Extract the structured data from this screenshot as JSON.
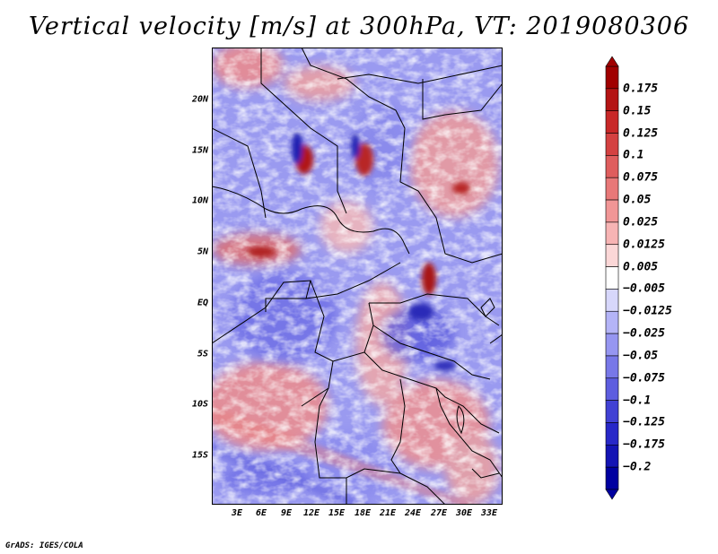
{
  "title": "Vertical velocity [m/s] at 300hPa, VT: 2019080306",
  "credit": "GrADS: IGES/COLA",
  "map": {
    "variable": "Vertical velocity",
    "units": "m/s",
    "level": "300hPa",
    "valid_time": "2019080306",
    "lon_range": [
      0,
      35
    ],
    "lat_range": [
      -20,
      25
    ],
    "lat_ticks": [
      {
        "value": 20,
        "label": "20N"
      },
      {
        "value": 15,
        "label": "15N"
      },
      {
        "value": 10,
        "label": "10N"
      },
      {
        "value": 5,
        "label": "5N"
      },
      {
        "value": 0,
        "label": "EQ"
      },
      {
        "value": -5,
        "label": "5S"
      },
      {
        "value": -10,
        "label": "10S"
      },
      {
        "value": -15,
        "label": "15S"
      }
    ],
    "lon_ticks": [
      {
        "value": 3,
        "label": "3E"
      },
      {
        "value": 6,
        "label": "6E"
      },
      {
        "value": 9,
        "label": "9E"
      },
      {
        "value": 12,
        "label": "12E"
      },
      {
        "value": 15,
        "label": "15E"
      },
      {
        "value": 18,
        "label": "18E"
      },
      {
        "value": 21,
        "label": "21E"
      },
      {
        "value": 24,
        "label": "24E"
      },
      {
        "value": 27,
        "label": "27E"
      },
      {
        "value": 30,
        "label": "30E"
      },
      {
        "value": 33,
        "label": "33E"
      }
    ]
  },
  "colorbar": {
    "labels": [
      "0.175",
      "0.15",
      "0.125",
      "0.1",
      "0.075",
      "0.05",
      "0.025",
      "0.0125",
      "0.005",
      "−0.005",
      "−0.0125",
      "−0.025",
      "−0.05",
      "−0.075",
      "−0.1",
      "−0.125",
      "−0.175",
      "−0.2"
    ],
    "colors": [
      "#a00000",
      "#b41414",
      "#c82828",
      "#d44141",
      "#df5d5d",
      "#e87878",
      "#f19696",
      "#f7b4b4",
      "#fbd7d7",
      "#ffffff",
      "#d7d7fb",
      "#b4b4f7",
      "#9696f1",
      "#7878e8",
      "#5d5ddf",
      "#4141d4",
      "#2828c8",
      "#1414b4",
      "#0000a0"
    ]
  }
}
